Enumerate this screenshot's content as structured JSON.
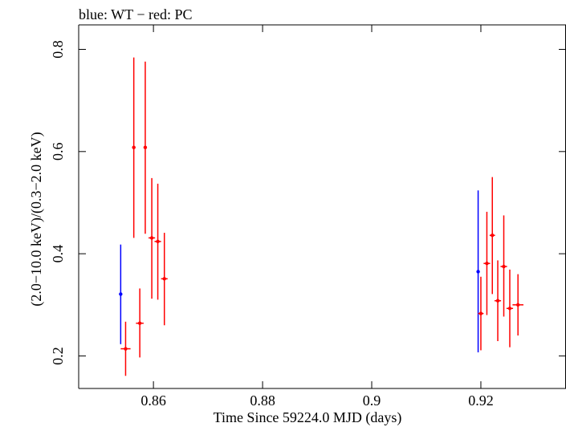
{
  "chart_data": {
    "type": "scatter",
    "title": "blue: WT − red: PC",
    "xlabel": "Time Since 59224.0 MJD (days)",
    "ylabel": "(2.0−10.0 keV)/(0.3−2.0 keV)",
    "xlim": [
      0.8463,
      0.9356
    ],
    "ylim": [
      0.1363,
      0.8479
    ],
    "x_ticks": [
      0.86,
      0.88,
      0.9,
      0.92
    ],
    "x_tick_labels": [
      "0.86",
      "0.88",
      "0.9",
      "0.92"
    ],
    "y_ticks": [
      0.2,
      0.4,
      0.6,
      0.8
    ],
    "y_tick_labels": [
      "0.2",
      "0.4",
      "0.6",
      "0.8"
    ],
    "grid": false,
    "series": [
      {
        "name": "WT",
        "color": "#0000ff",
        "points": [
          {
            "x": 0.854,
            "y": 0.321,
            "ylow": 0.223,
            "yhigh": 0.418,
            "xerr": 0.0
          },
          {
            "x": 0.9195,
            "y": 0.365,
            "ylow": 0.207,
            "yhigh": 0.524,
            "xerr": 0.0
          }
        ]
      },
      {
        "name": "PC",
        "color": "#ff0000",
        "points": [
          {
            "x": 0.8549,
            "y": 0.214,
            "ylow": 0.161,
            "yhigh": 0.267,
            "xerr": 0.0009
          },
          {
            "x": 0.8564,
            "y": 0.608,
            "ylow": 0.431,
            "yhigh": 0.784,
            "xerr": 0.0003
          },
          {
            "x": 0.8575,
            "y": 0.264,
            "ylow": 0.197,
            "yhigh": 0.332,
            "xerr": 0.0007
          },
          {
            "x": 0.8585,
            "y": 0.608,
            "ylow": 0.439,
            "yhigh": 0.776,
            "xerr": 0.0003
          },
          {
            "x": 0.8597,
            "y": 0.431,
            "ylow": 0.312,
            "yhigh": 0.548,
            "xerr": 0.0006
          },
          {
            "x": 0.8608,
            "y": 0.424,
            "ylow": 0.31,
            "yhigh": 0.537,
            "xerr": 0.0006
          },
          {
            "x": 0.862,
            "y": 0.351,
            "ylow": 0.26,
            "yhigh": 0.441,
            "xerr": 0.0006
          },
          {
            "x": 0.92,
            "y": 0.283,
            "ylow": 0.211,
            "yhigh": 0.355,
            "xerr": 0.0005
          },
          {
            "x": 0.9211,
            "y": 0.381,
            "ylow": 0.28,
            "yhigh": 0.482,
            "xerr": 0.0006
          },
          {
            "x": 0.9221,
            "y": 0.436,
            "ylow": 0.321,
            "yhigh": 0.55,
            "xerr": 0.0005
          },
          {
            "x": 0.9231,
            "y": 0.308,
            "ylow": 0.229,
            "yhigh": 0.387,
            "xerr": 0.0006
          },
          {
            "x": 0.9242,
            "y": 0.375,
            "ylow": 0.277,
            "yhigh": 0.475,
            "xerr": 0.0006
          },
          {
            "x": 0.9253,
            "y": 0.293,
            "ylow": 0.217,
            "yhigh": 0.369,
            "xerr": 0.0006
          },
          {
            "x": 0.9268,
            "y": 0.3,
            "ylow": 0.24,
            "yhigh": 0.36,
            "xerr": 0.001
          }
        ]
      }
    ]
  }
}
